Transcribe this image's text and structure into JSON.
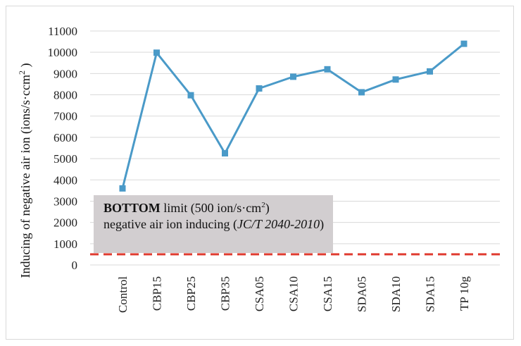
{
  "chart_data": {
    "type": "line",
    "title": "",
    "xlabel": "",
    "ylabel_main": "Inducing of negative air ion (ions/s·ccm",
    "ylabel_sup": "2",
    "ylabel_close": " )",
    "ylim": [
      0,
      11000
    ],
    "ytick_step": 1000,
    "yticks": [
      "0",
      "1000",
      "2000",
      "3000",
      "4000",
      "5000",
      "6000",
      "7000",
      "8000",
      "9000",
      "10000",
      "11000"
    ],
    "categories": [
      "Control",
      "CBP15",
      "CBP25",
      "CBP35",
      "CSA05",
      "CSA10",
      "CSA15",
      "SDA05",
      "SDA10",
      "SDA15",
      "TP 10g"
    ],
    "series": [
      {
        "values": [
          3600,
          9980,
          7980,
          5250,
          8300,
          8850,
          9200,
          8120,
          8720,
          9100,
          10400
        ],
        "color": "#4a9ac8"
      }
    ],
    "reference_line": {
      "value": 500,
      "color": "#e03c31",
      "style": "dashed"
    },
    "grid": true,
    "annotation": {
      "bold": "BOTTOM",
      "text1": " limit (500 ion/s·cm",
      "sup": "2",
      "text2": ")",
      "line2": "negative air ion inducing (",
      "italic": "JC/T 2040-2010",
      "close": ")"
    }
  }
}
